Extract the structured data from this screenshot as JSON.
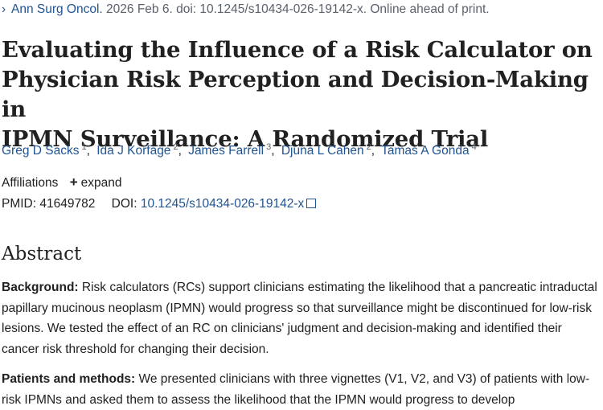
{
  "citation": {
    "journal": "Ann Surg Oncol.",
    "details": "2026 Feb 6. doi: 10.1245/s10434-026-19142-x. Online ahead of print."
  },
  "title": {
    "line1": "Evaluating the Influence of a Risk Calculator on",
    "line2": "Physician Risk Perception and Decision-Making in",
    "line3": "IPMN Surveillance: A Randomized Trial"
  },
  "authors": [
    {
      "name": "Greg D Sacks",
      "aff": "1"
    },
    {
      "name": "Ida J Korfage",
      "aff": "2"
    },
    {
      "name": "James Farrell",
      "aff": "3"
    },
    {
      "name": "Djuna L Cahen",
      "aff": "2"
    },
    {
      "name": "Tamas A Gonda",
      "aff": "4"
    }
  ],
  "affiliations": {
    "label": "Affiliations",
    "toggle_symbol": "+",
    "toggle_label": "expand"
  },
  "ids": {
    "pmid_label": "PMID:",
    "pmid": "41649782",
    "doi_label": "DOI:",
    "doi": "10.1245/s10434-026-19142-x"
  },
  "abstract": {
    "heading": "Abstract",
    "background_label": "Background:",
    "background_text": "Risk calculators (RCs) support clinicians estimating the likelihood that a pancreatic intraductal papillary mucinous neoplasm (IPMN) would progress so that surveillance might be discontinued for low-risk lesions. We tested the effect of an RC on clinicians' judgment and decision-making and identified their cancer risk threshold for changing their decision.",
    "methods_label": "Patients and methods:",
    "methods_text": "We presented clinicians with three vignettes (V1, V2, and V3) of patients with low-risk IPMNs and asked them to assess the likelihood that the IPMN would progress to develop"
  },
  "colors": {
    "link": "#205493",
    "text": "#212121",
    "muted": "#5b616b"
  }
}
